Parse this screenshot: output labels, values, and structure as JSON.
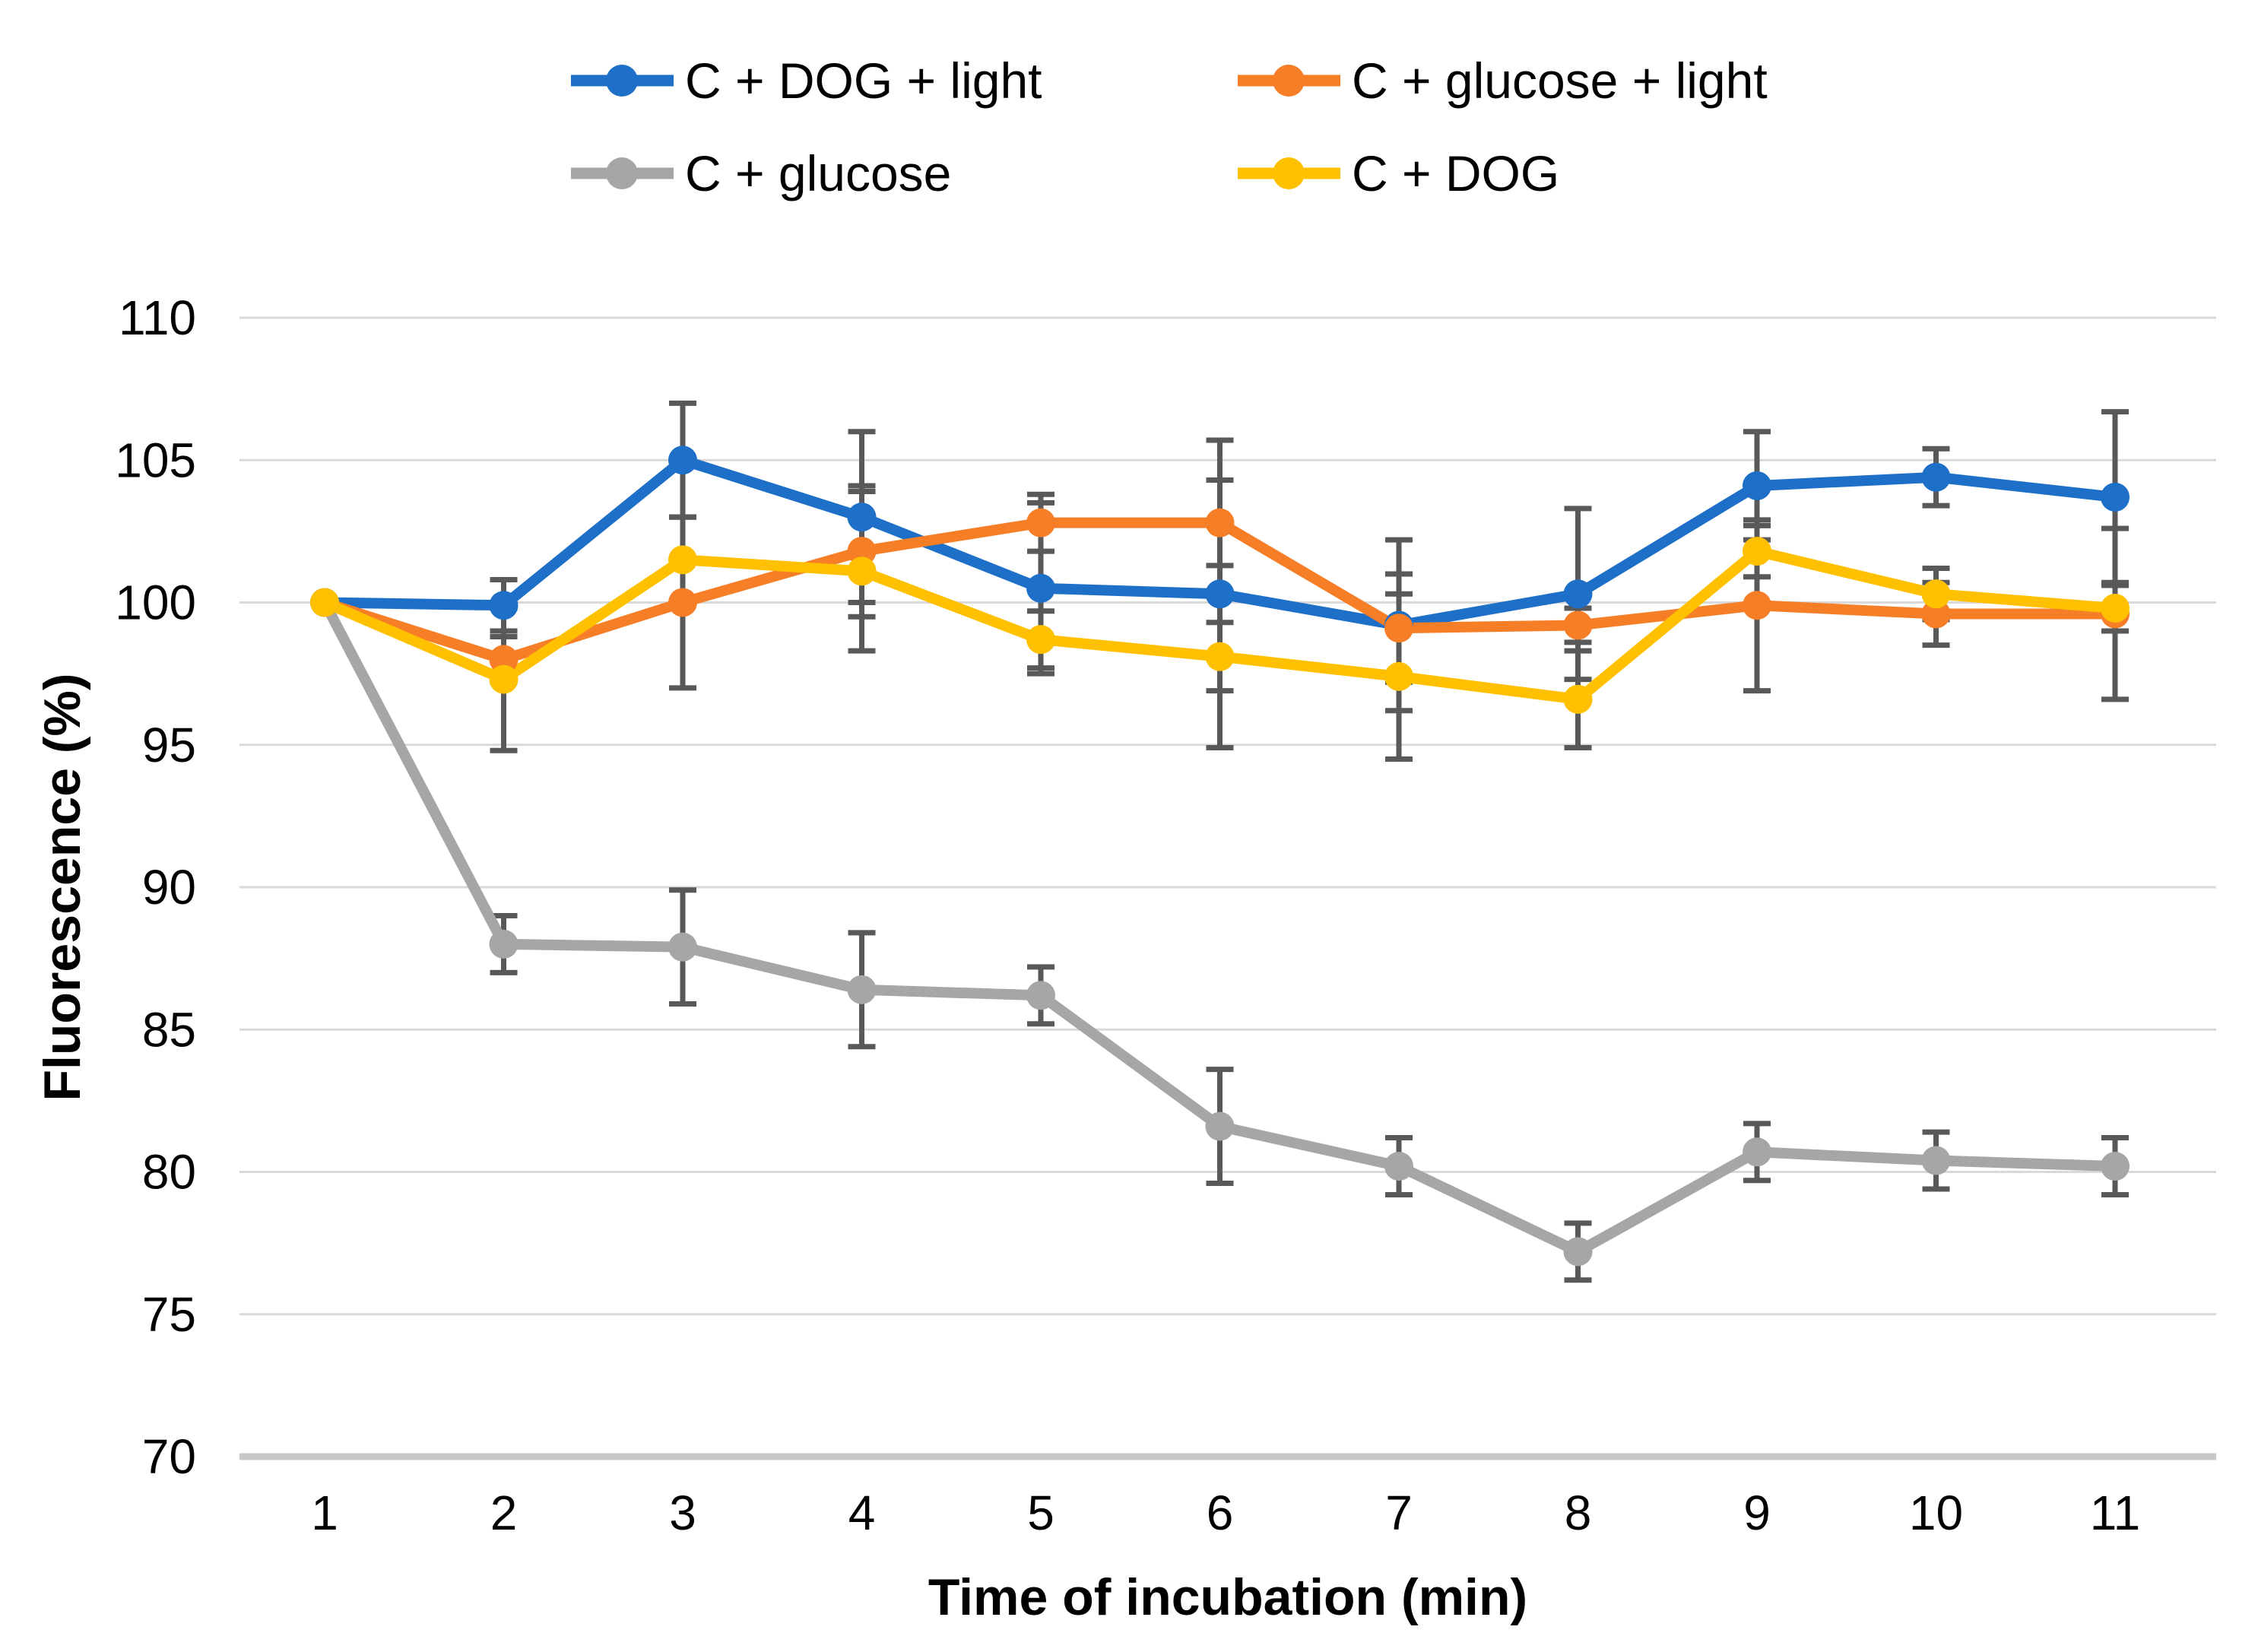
{
  "chart_data": {
    "type": "line",
    "title": "",
    "xlabel": "Time of incubation (min)",
    "ylabel": "Fluorescence (%)",
    "x": [
      1,
      2,
      3,
      4,
      5,
      6,
      7,
      8,
      9,
      10,
      11
    ],
    "ylim": [
      70,
      110
    ],
    "ytick_step": 5,
    "grid": true,
    "legend_position": "top",
    "series": [
      {
        "name": "C + DOG + light",
        "color": "#1E6FC8",
        "values": [
          100,
          99.9,
          105.0,
          103.0,
          100.5,
          100.3,
          99.2,
          100.3,
          104.1,
          104.4,
          103.7
        ],
        "errors": [
          0,
          0.9,
          2.0,
          3.0,
          3.0,
          5.4,
          3.0,
          3.0,
          1.9,
          1.0,
          3.0
        ]
      },
      {
        "name": "C + glucose + light",
        "color": "#F57E27",
        "values": [
          100,
          98.0,
          100.0,
          101.8,
          102.8,
          102.8,
          99.1,
          99.2,
          99.9,
          99.6,
          99.6
        ],
        "errors": [
          0,
          0.8,
          3.0,
          2.3,
          1.0,
          1.5,
          1.9,
          0.6,
          3.0,
          1.1,
          3.0
        ]
      },
      {
        "name": "C + glucose",
        "color": "#A6A6A6",
        "values": [
          100,
          88.0,
          87.9,
          86.4,
          86.2,
          81.6,
          80.2,
          77.2,
          80.7,
          80.4,
          80.2
        ],
        "errors": [
          0,
          1.0,
          2.0,
          2.0,
          1.0,
          2.0,
          1.0,
          1.0,
          1.0,
          1.0,
          1.0
        ]
      },
      {
        "name": "C + DOG",
        "color": "#FFC000",
        "values": [
          100,
          97.3,
          101.5,
          101.1,
          98.7,
          98.1,
          97.4,
          96.6,
          101.8,
          100.3,
          99.8
        ],
        "errors": [
          0,
          2.5,
          1.5,
          2.8,
          1.0,
          1.2,
          2.9,
          1.7,
          0.9,
          0.9,
          0.8
        ]
      }
    ],
    "error_bar_color": "#595959",
    "gridline_color": "#D9D9D9",
    "axis_line_color": "#C8C8C8"
  }
}
